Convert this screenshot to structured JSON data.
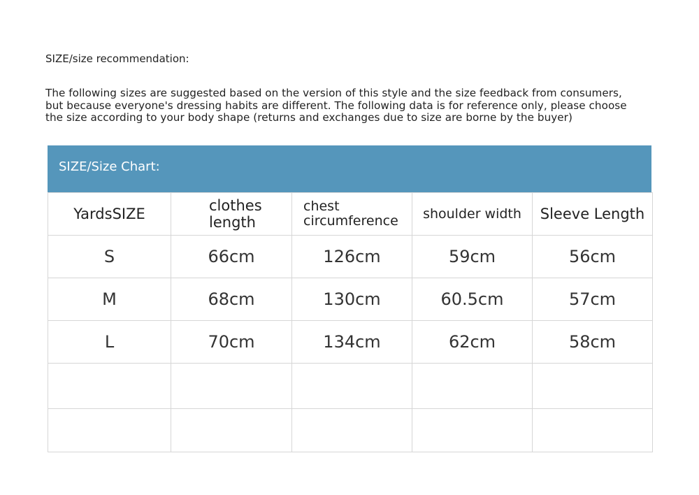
{
  "recommendation": {
    "title": "SIZE/size recommendation:",
    "lines": [
      "The following sizes are suggested based on the version of this style and the size feedback from consumers,",
      "but because everyone's dressing habits are different. The following data is for reference only, please choose",
      "the size according to your body shape (returns and exchanges due to size are borne by the buyer)"
    ]
  },
  "size_chart": {
    "title": "SIZE/Size Chart:",
    "header_color": "#5596bb",
    "columns": [
      "YardsSIZE",
      "clothes length",
      "chest circumference",
      "shoulder width",
      "Sleeve Length"
    ],
    "rows": [
      [
        "S",
        "66cm",
        "126cm",
        "59cm",
        "56cm"
      ],
      [
        "M",
        "68cm",
        "130cm",
        "60.5cm",
        "57cm"
      ],
      [
        "L",
        "70cm",
        "134cm",
        "62cm",
        "58cm"
      ]
    ]
  }
}
